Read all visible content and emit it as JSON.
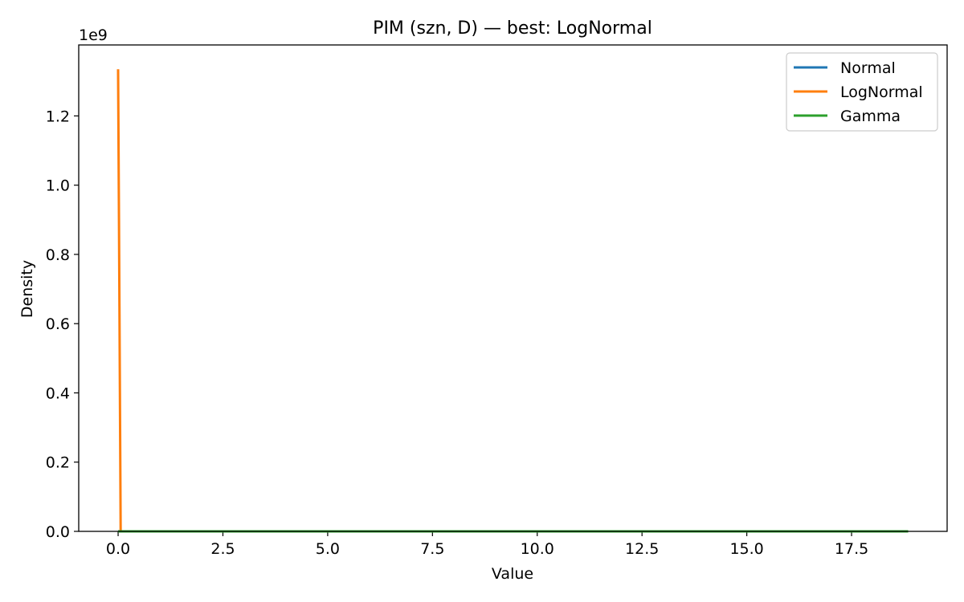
{
  "chart_data": {
    "type": "line",
    "title": "PIM (szn, D) — best: LogNormal",
    "xlabel": "Value",
    "ylabel": "Density",
    "y_offset_label": "1e9",
    "xlim": [
      -0.94,
      19.78
    ],
    "ylim": [
      0,
      1.405
    ],
    "x_ticks": [
      0.0,
      2.5,
      5.0,
      7.5,
      10.0,
      12.5,
      15.0,
      17.5
    ],
    "x_tick_labels": [
      "0.0",
      "2.5",
      "5.0",
      "7.5",
      "10.0",
      "12.5",
      "15.0",
      "17.5"
    ],
    "y_ticks": [
      0.0,
      0.2,
      0.4,
      0.6,
      0.8,
      1.0,
      1.2
    ],
    "y_tick_labels": [
      "0.0",
      "0.2",
      "0.4",
      "0.6",
      "0.8",
      "1.0",
      "1.2"
    ],
    "grid": false,
    "legend_position": "top-right",
    "series": [
      {
        "name": "Normal",
        "color": "#1f77b4",
        "x": [
          0.0,
          18.85
        ],
        "y": [
          0.0,
          0.0
        ]
      },
      {
        "name": "LogNormal",
        "color": "#ff7f0e",
        "x": [
          0.0,
          0.02,
          0.06,
          0.1,
          18.85
        ],
        "y": [
          1.335,
          0.9,
          0.0,
          0.0,
          0.0
        ]
      },
      {
        "name": "Gamma",
        "color": "#2ca02c",
        "x": [
          0.0,
          18.85
        ],
        "y": [
          0.0,
          0.0
        ]
      }
    ]
  }
}
